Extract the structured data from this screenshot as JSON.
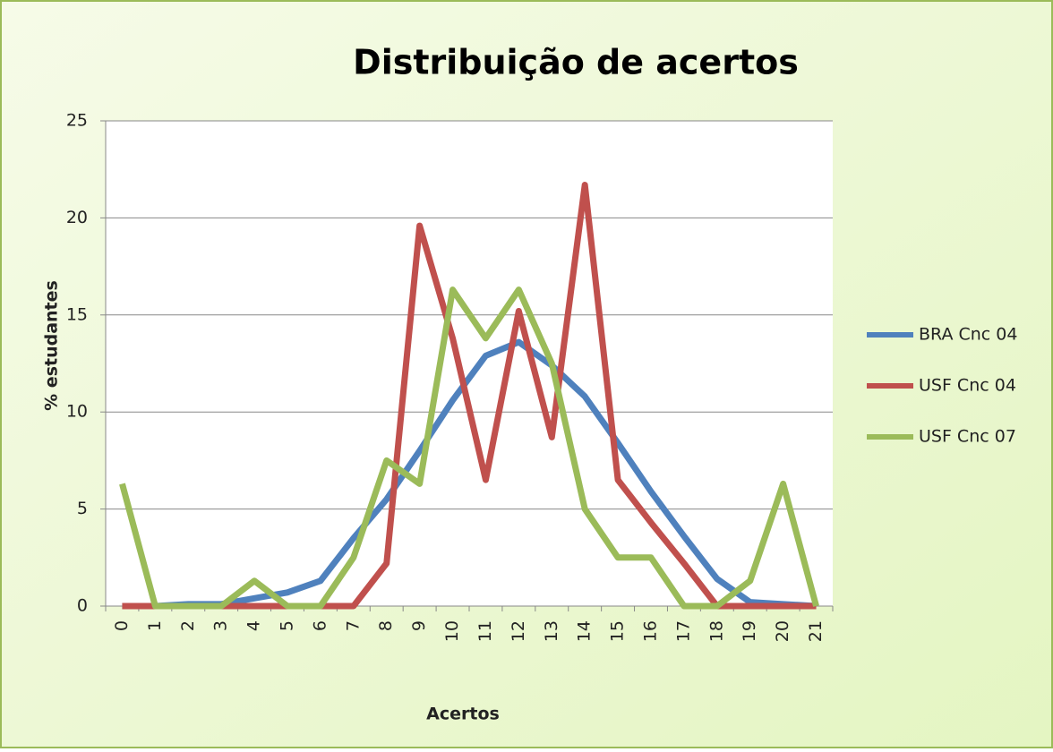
{
  "chart_data": {
    "type": "line",
    "title": "Distribuição de acertos",
    "x_label": "Acertos",
    "y_label": "% estudantes",
    "categories": [
      "0",
      "1",
      "2",
      "3",
      "4",
      "5",
      "6",
      "7",
      "8",
      "9",
      "10",
      "11",
      "12",
      "13",
      "14",
      "15",
      "16",
      "17",
      "18",
      "19",
      "20",
      "21"
    ],
    "series": [
      {
        "name": "BRA Cnc 04",
        "color": "#4f81bd",
        "values": [
          0,
          0,
          0.1,
          0.1,
          0.4,
          0.7,
          1.3,
          3.5,
          5.5,
          8,
          10.6,
          12.9,
          13.6,
          12.4,
          10.8,
          8.4,
          5.9,
          3.6,
          1.4,
          0.2,
          0.1,
          0
        ]
      },
      {
        "name": "USF Cnc 04",
        "color": "#c0504d",
        "values": [
          0,
          0,
          0,
          0,
          0,
          0,
          0,
          0,
          2.2,
          19.6,
          13.8,
          6.5,
          15.2,
          8.7,
          21.7,
          6.5,
          4.3,
          2.2,
          0,
          0,
          0,
          0
        ]
      },
      {
        "name": "USF Cnc 07",
        "color": "#9bbb59",
        "values": [
          6.3,
          0,
          0,
          0,
          1.3,
          0,
          0,
          2.5,
          7.5,
          6.3,
          16.3,
          13.8,
          16.3,
          12.5,
          5,
          2.5,
          2.5,
          0,
          0,
          1.3,
          6.3,
          0
        ]
      }
    ],
    "ylim": [
      0,
      25
    ],
    "yticks": [
      0,
      5,
      10,
      15,
      20,
      25
    ],
    "grid": true,
    "legend": "right"
  }
}
